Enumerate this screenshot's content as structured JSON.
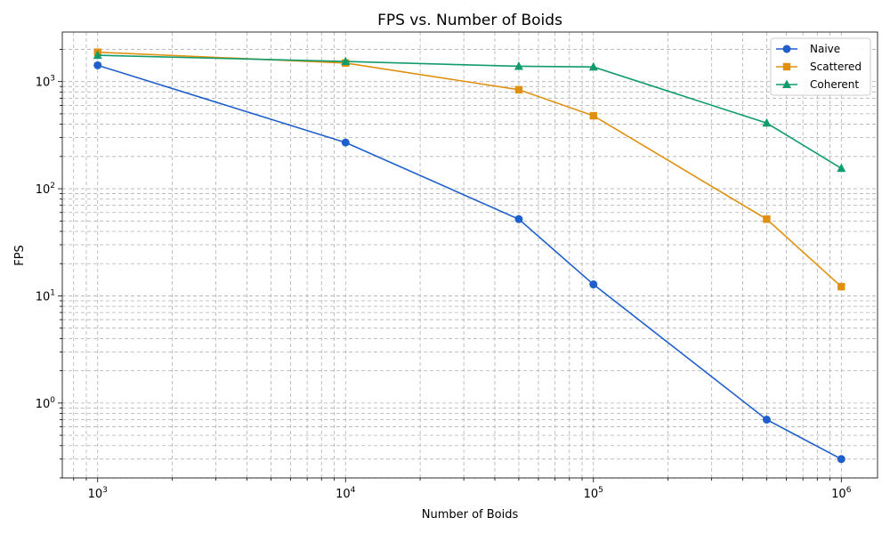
{
  "chart_data": {
    "type": "line",
    "title": "FPS vs. Number of Boids",
    "xlabel": "Number of Boids",
    "ylabel": "FPS",
    "xscale": "log",
    "yscale": "log",
    "xlim": [
      720,
      1400000
    ],
    "ylim": [
      0.2,
      2900
    ],
    "grid": true,
    "legend_position": "top-right",
    "x": [
      1000,
      10000,
      50000,
      100000,
      500000,
      1000000
    ],
    "x_ticks": [
      {
        "value": 1000,
        "base": "10",
        "exp": "3"
      },
      {
        "value": 10000,
        "base": "10",
        "exp": "4"
      },
      {
        "value": 100000,
        "base": "10",
        "exp": "5"
      },
      {
        "value": 1000000,
        "base": "10",
        "exp": "6"
      }
    ],
    "y_ticks": [
      {
        "value": 1,
        "base": "10",
        "exp": "0"
      },
      {
        "value": 10,
        "base": "10",
        "exp": "1"
      },
      {
        "value": 100,
        "base": "10",
        "exp": "2"
      },
      {
        "value": 1000,
        "base": "10",
        "exp": "3"
      }
    ],
    "series": [
      {
        "name": "Naive",
        "color": "#1f5fcc",
        "marker": "circle",
        "values": [
          1420,
          270,
          52,
          12.8,
          0.7,
          0.3
        ]
      },
      {
        "name": "Scattered",
        "color": "#e0900e",
        "marker": "square",
        "values": [
          1880,
          1490,
          840,
          480,
          52,
          12.2
        ]
      },
      {
        "name": "Coherent",
        "color": "#109c6c",
        "marker": "triangle",
        "values": [
          1760,
          1540,
          1390,
          1370,
          410,
          155
        ]
      }
    ]
  }
}
